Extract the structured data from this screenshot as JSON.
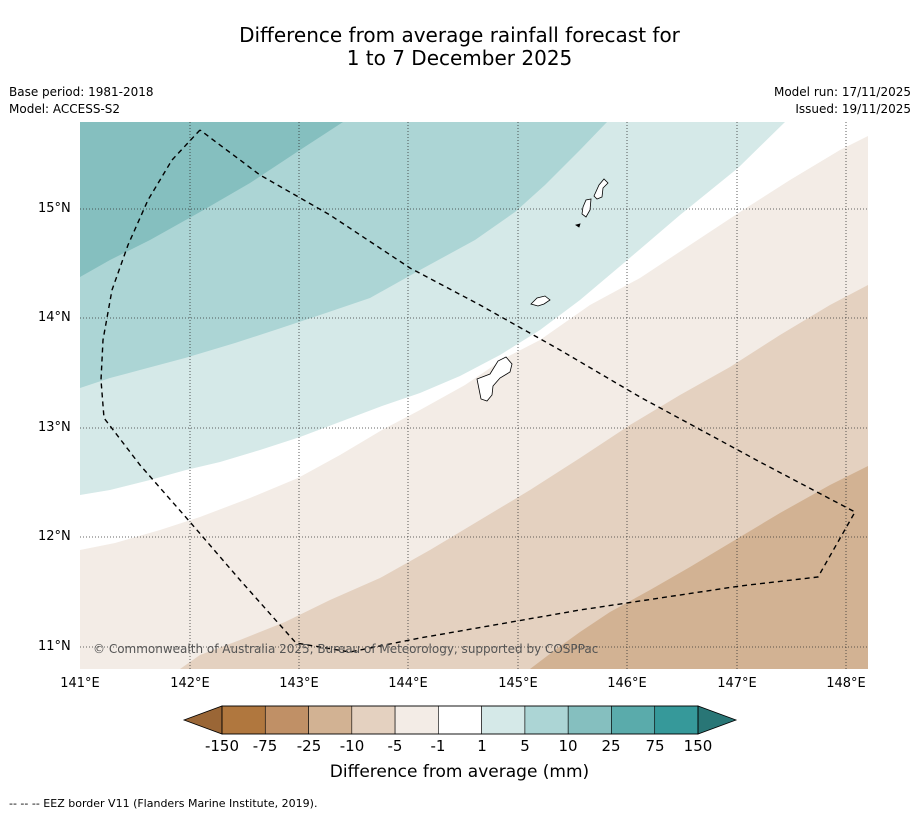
{
  "title": {
    "line1": "Difference from average rainfall forecast for",
    "line2": "1 to 7 December 2025"
  },
  "meta": {
    "base_period": "Base period: 1981-2018",
    "model": "Model: ACCESS-S2",
    "model_run": "Model run: 17/11/2025",
    "issued": "Issued: 19/11/2025"
  },
  "map": {
    "copyright": "© Commonwealth of Australia 2025, Bureau of Meteorology, supported by COSPPac",
    "lat_labels": [
      "15°N",
      "14°N",
      "13°N",
      "12°N",
      "11°N"
    ],
    "lon_labels": [
      "141°E",
      "142°E",
      "143°E",
      "144°E",
      "145°E",
      "146°E",
      "147°E",
      "148°E"
    ],
    "features": [
      "EEZ border",
      "Guam",
      "Rota",
      "Tinian",
      "Saipan"
    ]
  },
  "colorbar": {
    "labels": [
      "-150",
      "-75",
      "-25",
      "-10",
      "-5",
      "-1",
      "1",
      "5",
      "10",
      "25",
      "75",
      "150"
    ],
    "colors": [
      "#9a6636",
      "#b0773e",
      "#c09066",
      "#d2b293",
      "#e4d1c0",
      "#f3ece6",
      "#ffffff",
      "#d5e9e8",
      "#acd5d5",
      "#85bfbf",
      "#5aabab",
      "#36999a",
      "#297676"
    ],
    "title": "Difference from average (mm)"
  },
  "footnote": "-- -- -- EEZ border V11 (Flanders Marine Institute, 2019)."
}
